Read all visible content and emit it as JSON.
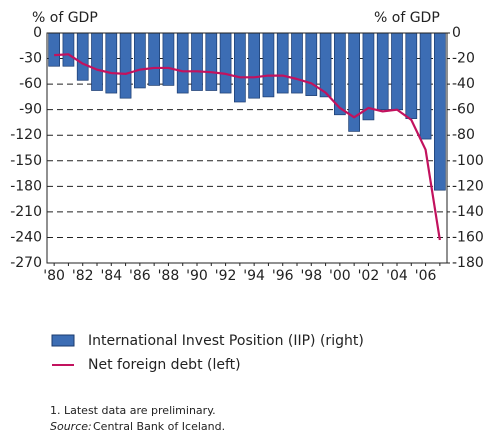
{
  "chart_data": {
    "type": "bar-line",
    "y_label": "% of GDP",
    "y2_label": "% of GDP",
    "categories": [
      "'80",
      null,
      "'82",
      null,
      "'84",
      null,
      "'86",
      null,
      "'88",
      null,
      "'90",
      null,
      "'92",
      null,
      "'94",
      null,
      "'96",
      null,
      "'98",
      null,
      "'00",
      null,
      "'02",
      null,
      "'04",
      null,
      "'06",
      null
    ],
    "series": [
      {
        "name": "International Invest Position (IIP) (right)",
        "type": "bar",
        "axis": "y2",
        "color": "#3c6db4",
        "values": [
          -26,
          -26,
          -37,
          -45,
          -47,
          -51,
          -43,
          -41,
          -41,
          -47,
          -45,
          -45,
          -47,
          -54,
          -51,
          -50,
          -47,
          -47,
          -49,
          -50,
          -64,
          -77,
          -68,
          -60,
          -60,
          -67,
          -83,
          -123
        ]
      },
      {
        "name": "Net foreign debt (left)",
        "type": "line",
        "axis": "y",
        "color": "#c2125e",
        "values": [
          -26,
          -25,
          -36,
          -43,
          -47,
          -48,
          -43,
          -41,
          -41,
          -45,
          -45,
          -46,
          -48,
          -52,
          -52,
          -50,
          -50,
          -54,
          -59,
          -70,
          -88,
          -99,
          -88,
          -92,
          -90,
          -102,
          -137,
          -243
        ]
      }
    ],
    "ylim": [
      0,
      -270
    ],
    "yticks": [
      0,
      -30,
      -60,
      -90,
      -120,
      -150,
      -180,
      -210,
      -240,
      -270
    ],
    "y2lim": [
      0,
      -180
    ],
    "y2ticks": [
      0,
      -20,
      -40,
      -60,
      -80,
      -100,
      -120,
      -140,
      -160,
      -180
    ],
    "grid": true,
    "footnote": "1. Latest data are preliminary.",
    "source_label": "Source:",
    "source_text": "Central Bank of Iceland."
  }
}
